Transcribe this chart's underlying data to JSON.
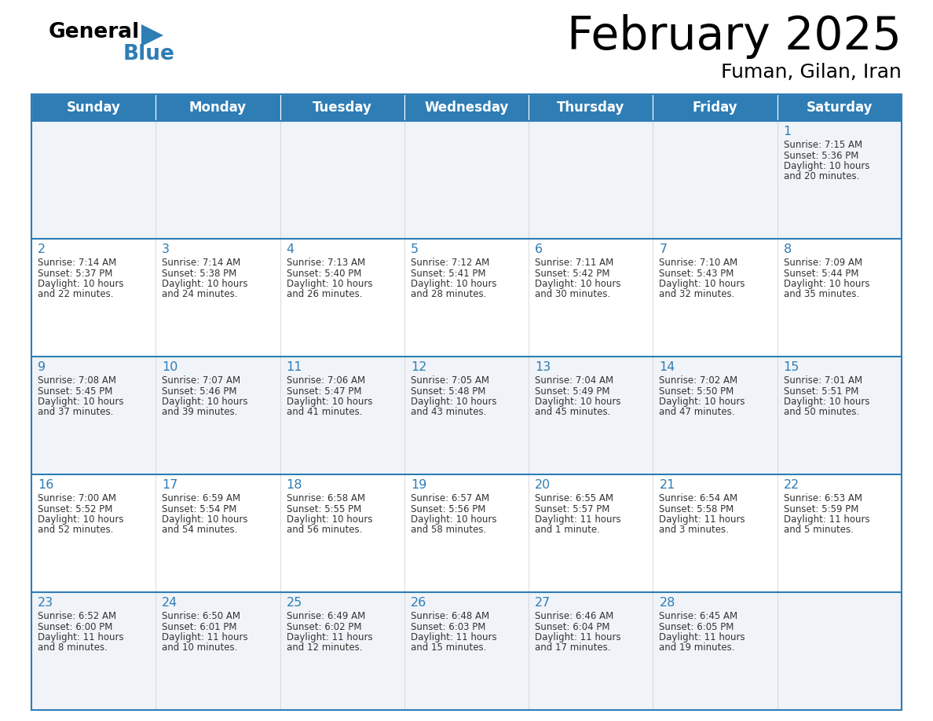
{
  "title": "February 2025",
  "subtitle": "Fuman, Gilan, Iran",
  "days_of_week": [
    "Sunday",
    "Monday",
    "Tuesday",
    "Wednesday",
    "Thursday",
    "Friday",
    "Saturday"
  ],
  "header_bg": "#2E7DB5",
  "header_text": "#FFFFFF",
  "row_bg_odd": "#F0F4F8",
  "row_bg_even": "#FFFFFF",
  "border_color": "#2E7DB5",
  "day_number_color": "#2E7DB5",
  "text_color": "#333333",
  "weeks": [
    [
      {
        "day": null,
        "sunrise": null,
        "sunset": null,
        "daylight": null
      },
      {
        "day": null,
        "sunrise": null,
        "sunset": null,
        "daylight": null
      },
      {
        "day": null,
        "sunrise": null,
        "sunset": null,
        "daylight": null
      },
      {
        "day": null,
        "sunrise": null,
        "sunset": null,
        "daylight": null
      },
      {
        "day": null,
        "sunrise": null,
        "sunset": null,
        "daylight": null
      },
      {
        "day": null,
        "sunrise": null,
        "sunset": null,
        "daylight": null
      },
      {
        "day": 1,
        "sunrise": "7:15 AM",
        "sunset": "5:36 PM",
        "daylight": "10 hours\nand 20 minutes."
      }
    ],
    [
      {
        "day": 2,
        "sunrise": "7:14 AM",
        "sunset": "5:37 PM",
        "daylight": "10 hours\nand 22 minutes."
      },
      {
        "day": 3,
        "sunrise": "7:14 AM",
        "sunset": "5:38 PM",
        "daylight": "10 hours\nand 24 minutes."
      },
      {
        "day": 4,
        "sunrise": "7:13 AM",
        "sunset": "5:40 PM",
        "daylight": "10 hours\nand 26 minutes."
      },
      {
        "day": 5,
        "sunrise": "7:12 AM",
        "sunset": "5:41 PM",
        "daylight": "10 hours\nand 28 minutes."
      },
      {
        "day": 6,
        "sunrise": "7:11 AM",
        "sunset": "5:42 PM",
        "daylight": "10 hours\nand 30 minutes."
      },
      {
        "day": 7,
        "sunrise": "7:10 AM",
        "sunset": "5:43 PM",
        "daylight": "10 hours\nand 32 minutes."
      },
      {
        "day": 8,
        "sunrise": "7:09 AM",
        "sunset": "5:44 PM",
        "daylight": "10 hours\nand 35 minutes."
      }
    ],
    [
      {
        "day": 9,
        "sunrise": "7:08 AM",
        "sunset": "5:45 PM",
        "daylight": "10 hours\nand 37 minutes."
      },
      {
        "day": 10,
        "sunrise": "7:07 AM",
        "sunset": "5:46 PM",
        "daylight": "10 hours\nand 39 minutes."
      },
      {
        "day": 11,
        "sunrise": "7:06 AM",
        "sunset": "5:47 PM",
        "daylight": "10 hours\nand 41 minutes."
      },
      {
        "day": 12,
        "sunrise": "7:05 AM",
        "sunset": "5:48 PM",
        "daylight": "10 hours\nand 43 minutes."
      },
      {
        "day": 13,
        "sunrise": "7:04 AM",
        "sunset": "5:49 PM",
        "daylight": "10 hours\nand 45 minutes."
      },
      {
        "day": 14,
        "sunrise": "7:02 AM",
        "sunset": "5:50 PM",
        "daylight": "10 hours\nand 47 minutes."
      },
      {
        "day": 15,
        "sunrise": "7:01 AM",
        "sunset": "5:51 PM",
        "daylight": "10 hours\nand 50 minutes."
      }
    ],
    [
      {
        "day": 16,
        "sunrise": "7:00 AM",
        "sunset": "5:52 PM",
        "daylight": "10 hours\nand 52 minutes."
      },
      {
        "day": 17,
        "sunrise": "6:59 AM",
        "sunset": "5:54 PM",
        "daylight": "10 hours\nand 54 minutes."
      },
      {
        "day": 18,
        "sunrise": "6:58 AM",
        "sunset": "5:55 PM",
        "daylight": "10 hours\nand 56 minutes."
      },
      {
        "day": 19,
        "sunrise": "6:57 AM",
        "sunset": "5:56 PM",
        "daylight": "10 hours\nand 58 minutes."
      },
      {
        "day": 20,
        "sunrise": "6:55 AM",
        "sunset": "5:57 PM",
        "daylight": "11 hours\nand 1 minute."
      },
      {
        "day": 21,
        "sunrise": "6:54 AM",
        "sunset": "5:58 PM",
        "daylight": "11 hours\nand 3 minutes."
      },
      {
        "day": 22,
        "sunrise": "6:53 AM",
        "sunset": "5:59 PM",
        "daylight": "11 hours\nand 5 minutes."
      }
    ],
    [
      {
        "day": 23,
        "sunrise": "6:52 AM",
        "sunset": "6:00 PM",
        "daylight": "11 hours\nand 8 minutes."
      },
      {
        "day": 24,
        "sunrise": "6:50 AM",
        "sunset": "6:01 PM",
        "daylight": "11 hours\nand 10 minutes."
      },
      {
        "day": 25,
        "sunrise": "6:49 AM",
        "sunset": "6:02 PM",
        "daylight": "11 hours\nand 12 minutes."
      },
      {
        "day": 26,
        "sunrise": "6:48 AM",
        "sunset": "6:03 PM",
        "daylight": "11 hours\nand 15 minutes."
      },
      {
        "day": 27,
        "sunrise": "6:46 AM",
        "sunset": "6:04 PM",
        "daylight": "11 hours\nand 17 minutes."
      },
      {
        "day": 28,
        "sunrise": "6:45 AM",
        "sunset": "6:05 PM",
        "daylight": "11 hours\nand 19 minutes."
      },
      {
        "day": null,
        "sunrise": null,
        "sunset": null,
        "daylight": null
      }
    ]
  ]
}
